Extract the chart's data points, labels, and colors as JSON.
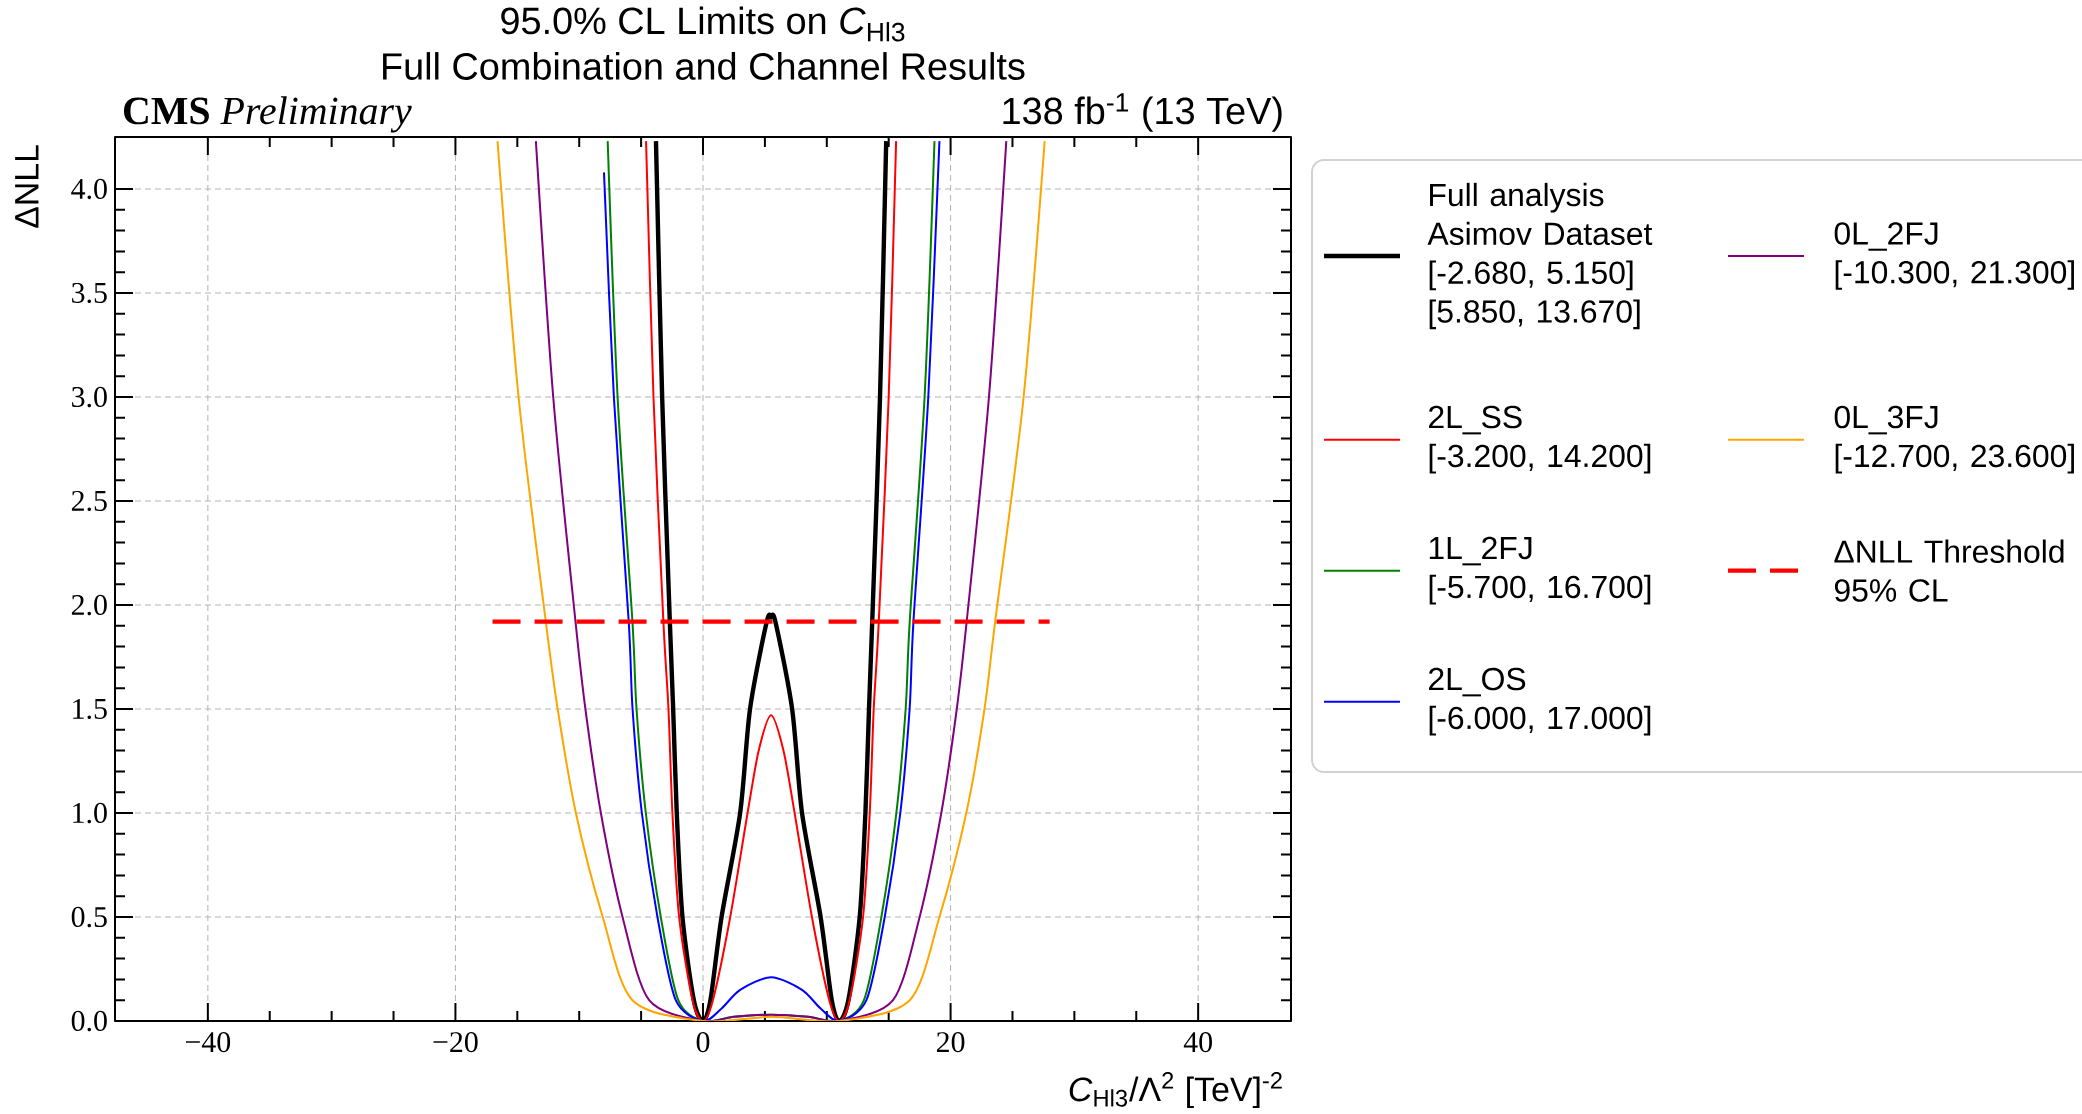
{
  "chart_data": {
    "type": "line",
    "title": "95.0% CL Limits on *C*$_{Hl3}$",
    "subtitle": "Full Combination and Channel Results",
    "xlabel": "*C*$_{Hl3}$/Λ$^{2}$ [TeV]$^{-2}$",
    "ylabel": "ΔNLL",
    "annotations": [
      "**CMS** *Preliminary*",
      "138 fb$^{-1}$ (13 TeV)"
    ],
    "xlim": [
      -47.5,
      47.5
    ],
    "ylim": [
      0,
      4.25
    ],
    "xticks": [
      {
        "value": -40,
        "label": "−40"
      },
      {
        "value": -20,
        "label": "−20"
      },
      0,
      20,
      40
    ],
    "yticks": [
      {
        "value": 0,
        "label": "0.0"
      },
      0.5,
      {
        "value": 1,
        "label": "1.0"
      },
      1.5,
      {
        "value": 2,
        "label": "2.0"
      },
      2.5,
      {
        "value": 3,
        "label": "3.0"
      },
      3.5,
      {
        "value": 4,
        "label": "4.0"
      }
    ],
    "grid": true,
    "legend": "right",
    "marker": "none",
    "series": [
      {
        "name": "Full analysis\nAsimov Dataset\n[-2.680, 5.150]\n[5.850, 13.670]",
        "color": "#000000",
        "x": [
          -3.8,
          -3.3,
          -2.68,
          -2.41,
          -2.12,
          -1.66,
          -0.74,
          0,
          0.6,
          1.5,
          3.0,
          3.8,
          5.15,
          5.5,
          5.85,
          7.2,
          8.0,
          9.5,
          10.4,
          11,
          11.74,
          12.66,
          13.12,
          13.41,
          13.67,
          14.3,
          14.8
        ],
        "values": [
          4.23,
          3.0,
          1.92,
          1.5,
          1.0,
          0.5,
          0.1,
          0,
          0.1,
          0.5,
          1.0,
          1.5,
          1.92,
          1.94,
          1.92,
          1.5,
          1.0,
          0.5,
          0.1,
          0,
          0.1,
          0.5,
          1.0,
          1.5,
          1.92,
          3.0,
          4.23
        ]
      },
      {
        "name": "2L_SS\n[-3.200, 14.200]",
        "color": "#ff0000",
        "x": [
          -4.6,
          -4.0,
          -3.2,
          -2.79,
          -2.47,
          -1.93,
          -0.85,
          0,
          0.8,
          2.2,
          3.6,
          4.5,
          5.5,
          6.5,
          7.4,
          8.8,
          10.2,
          11,
          11.85,
          12.93,
          13.47,
          13.79,
          14.2,
          15.0,
          15.6
        ],
        "values": [
          4.23,
          3.0,
          1.92,
          1.5,
          1.0,
          0.5,
          0.1,
          0,
          0.1,
          0.5,
          1.0,
          1.3,
          1.47,
          1.3,
          1.0,
          0.5,
          0.1,
          0,
          0.1,
          0.5,
          1.0,
          1.5,
          1.92,
          3.0,
          4.23
        ]
      },
      {
        "name": "1L_2FJ\n[-5.700, 16.700]",
        "color": "#008000",
        "x": [
          -7.7,
          -6.9,
          -5.7,
          -5.37,
          -4.62,
          -3.41,
          -2.0,
          0,
          2.5,
          5.5,
          8.5,
          11,
          13.0,
          14.41,
          15.62,
          16.37,
          16.7,
          17.9,
          18.7
        ],
        "values": [
          4.23,
          3.0,
          1.92,
          1.5,
          1.0,
          0.5,
          0.1,
          0,
          0.02,
          0.03,
          0.02,
          0,
          0.1,
          0.5,
          1.0,
          1.5,
          1.92,
          3.0,
          4.23
        ]
      },
      {
        "name": "2L_OS\n[-6.000, 17.000]",
        "color": "#0000ff",
        "x": [
          -8.0,
          -7.2,
          -6.0,
          -5.69,
          -4.94,
          -3.68,
          -2.2,
          0,
          1.5,
          3.0,
          5.5,
          8.0,
          9.5,
          11,
          13.2,
          14.68,
          15.94,
          16.69,
          17.0,
          18.2,
          19.1
        ],
        "values": [
          4.08,
          3.0,
          1.92,
          1.5,
          1.0,
          0.5,
          0.1,
          0,
          0.06,
          0.15,
          0.21,
          0.15,
          0.06,
          0,
          0.1,
          0.5,
          1.0,
          1.5,
          1.92,
          3.0,
          4.23
        ]
      },
      {
        "name": "0L_2FJ\n[-10.300, 21.300]",
        "color": "#800080",
        "x": [
          -13.5,
          -12.1,
          -10.3,
          -9.5,
          -8.25,
          -6.5,
          -4.35,
          0,
          2.5,
          5.5,
          8.5,
          11,
          15.35,
          17.5,
          19.25,
          20.5,
          21.3,
          23.1,
          24.5
        ],
        "values": [
          4.23,
          3.0,
          1.92,
          1.5,
          1.0,
          0.5,
          0.1,
          0,
          0.02,
          0.03,
          0.02,
          0,
          0.1,
          0.5,
          1.0,
          1.5,
          1.92,
          3.0,
          4.23
        ]
      },
      {
        "name": "0L_3FJ\n[-12.700, 23.600]",
        "color": "#ffa500",
        "x": [
          -16.6,
          -14.9,
          -12.7,
          -11.74,
          -10.27,
          -8.1,
          -5.7,
          0,
          5.5,
          11,
          16.7,
          19.1,
          21.27,
          22.74,
          23.6,
          25.9,
          27.6
        ],
        "values": [
          4.23,
          3.0,
          1.92,
          1.5,
          1.0,
          0.5,
          0.1,
          0,
          0.02,
          0,
          0.1,
          0.5,
          1.0,
          1.5,
          1.92,
          3.0,
          4.23
        ]
      },
      {
        "name": "ΔNLL Threshold\n95% CL",
        "color": "#ff0000",
        "line_style": "dashed",
        "x": [
          -17,
          28
        ],
        "values": [
          1.92,
          1.92
        ]
      }
    ]
  }
}
